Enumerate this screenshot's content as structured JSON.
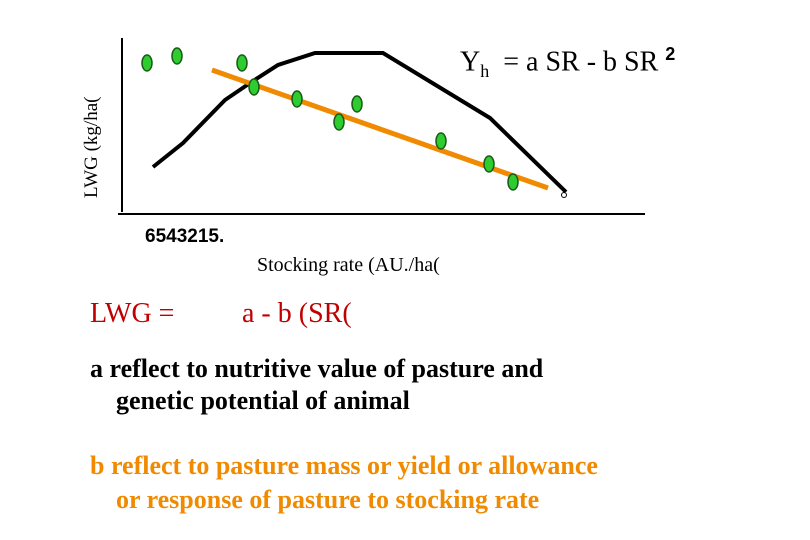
{
  "chart": {
    "y_axis_label": "LWG (kg/ha(",
    "equation": {
      "lhs": "Y",
      "subscript": "h",
      "rhs": "= a SR  -  b SR",
      "superscript": "2"
    },
    "x_tick_text": "6543215.",
    "x_axis_label": "Stocking rate (AU./ha("
  },
  "formula": {
    "lhs": "LWG  =",
    "rhs": "a - b (SR("
  },
  "notes": [
    {
      "lines": [
        "a reflect to nutritive value of pasture and",
        "genetic potential of animal"
      ]
    },
    {
      "lines": [
        "b reflect to pasture mass or yield or allowance",
        "or response of pasture to stocking rate"
      ]
    }
  ]
}
